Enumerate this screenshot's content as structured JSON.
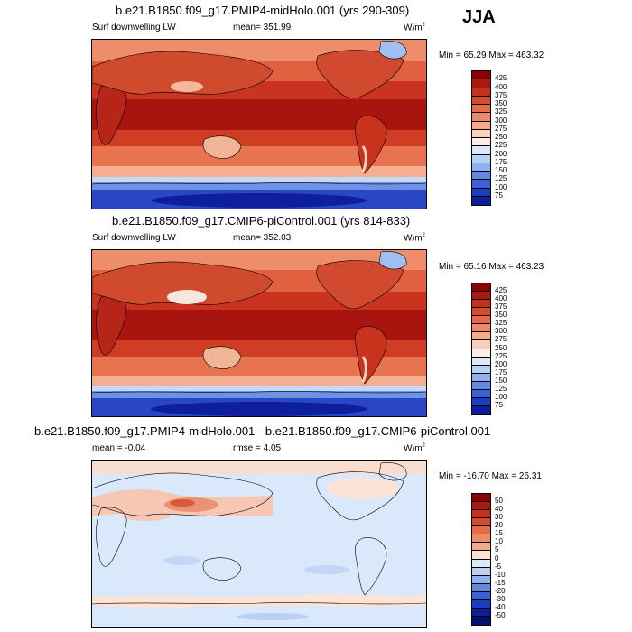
{
  "season": "JJA",
  "panels": [
    {
      "title": "b.e21.B1850.f09_g17.PMIP4-midHolo.001 (yrs 290-309)",
      "left_label": "Surf downwelling LW",
      "mean_label": "mean= 351.99",
      "units": "W/m",
      "units_sup": "2",
      "minmax": "Min =  65.29 Max = 463.32",
      "colorbar": {
        "labels": [
          "425",
          "400",
          "375",
          "350",
          "325",
          "300",
          "275",
          "250",
          "225",
          "200",
          "175",
          "150",
          "125",
          "100",
          "75"
        ],
        "colors": [
          "#8b0000",
          "#a81a10",
          "#c6301f",
          "#d9492b",
          "#e56a45",
          "#ee8a66",
          "#f4ab8c",
          "#f9d0bc",
          "#fbeee6",
          "#dce9fb",
          "#b9d0f6",
          "#8fb1ef",
          "#6189e4",
          "#3a62d6",
          "#1c3cc2",
          "#0a1f9e"
        ]
      }
    },
    {
      "title": "b.e21.B1850.f09_g17.CMIP6-piControl.001 (yrs 814-833)",
      "left_label": "Surf downwelling LW",
      "mean_label": "mean= 352.03",
      "units": "W/m",
      "units_sup": "2",
      "minmax": "Min =  65.16 Max = 463.23",
      "colorbar": {
        "labels": [
          "425",
          "400",
          "375",
          "350",
          "325",
          "300",
          "275",
          "250",
          "225",
          "200",
          "175",
          "150",
          "125",
          "100",
          "75"
        ],
        "colors": [
          "#8b0000",
          "#a81a10",
          "#c6301f",
          "#d9492b",
          "#e56a45",
          "#ee8a66",
          "#f4ab8c",
          "#f9d0bc",
          "#fbeee6",
          "#dce9fb",
          "#b9d0f6",
          "#8fb1ef",
          "#6189e4",
          "#3a62d6",
          "#1c3cc2",
          "#0a1f9e"
        ]
      }
    },
    {
      "title": "b.e21.B1850.f09_g17.PMIP4-midHolo.001 - b.e21.B1850.f09_g17.CMIP6-piControl.001",
      "mean_label": "mean =  -0.04",
      "rmse_label": "rmse =   4.05",
      "units": "W/m",
      "units_sup": "2",
      "minmax": "Min = -16.70 Max =  26.31",
      "colorbar": {
        "labels": [
          "50",
          "40",
          "30",
          "20",
          "15",
          "10",
          "5",
          "0",
          "-5",
          "-10",
          "-15",
          "-20",
          "-30",
          "-40",
          "-50"
        ],
        "colors": [
          "#8b0000",
          "#a81a10",
          "#c6301f",
          "#d9492b",
          "#e56a45",
          "#ee8a66",
          "#f4ab8c",
          "#fbe3d6",
          "#dbe9fb",
          "#b9d0f6",
          "#8fb1ef",
          "#6189e4",
          "#3a62d6",
          "#1c3cc2",
          "#0a1f9e",
          "#050f70"
        ]
      }
    }
  ]
}
